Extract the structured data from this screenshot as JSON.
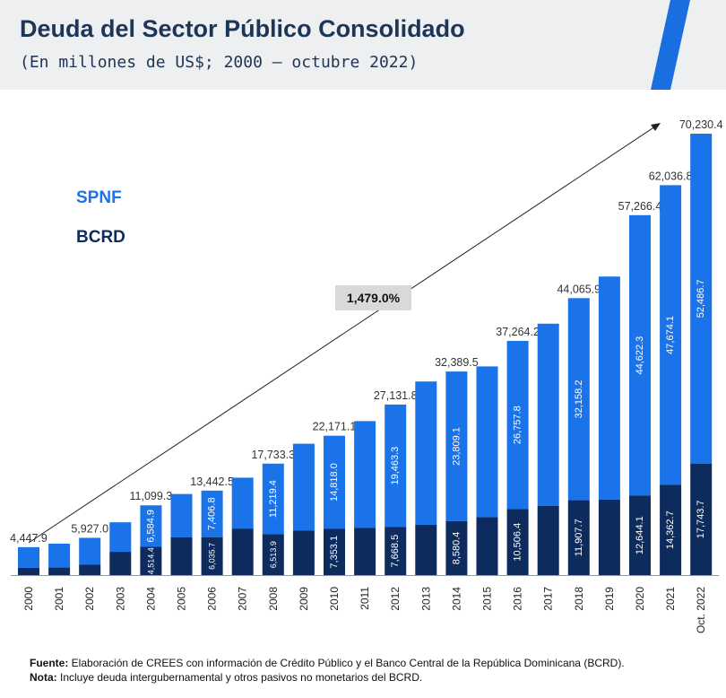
{
  "header": {
    "title": "Deuda del Sector Público Consolidado",
    "subtitle": "(En millones de US$; 2000 – octubre 2022)"
  },
  "colors": {
    "spnf": "#1a73e8",
    "bcrd": "#0d2b5c",
    "title": "#1d3557",
    "stripe": "#1a6fe0"
  },
  "chart_data": {
    "type": "bar",
    "stacked": true,
    "categories": [
      "2000",
      "2001",
      "2002",
      "2003",
      "2004",
      "2005",
      "2006",
      "2007",
      "2008",
      "2009",
      "2010",
      "2011",
      "2012",
      "2013",
      "2014",
      "2015",
      "2016",
      "2017",
      "2018",
      "2019",
      "2020",
      "2021",
      "Oct. 2022"
    ],
    "series": [
      {
        "name": "BCRD",
        "values": [
          1150,
          1200,
          1650,
          3700,
          4514.4,
          6000,
          6035.7,
          7400,
          6513.9,
          7100,
          7353.1,
          7500,
          7668.5,
          8000,
          8580.4,
          9200,
          10506.4,
          11000,
          11907.7,
          12000,
          12644.1,
          14362.7,
          17743.7
        ]
      },
      {
        "name": "SPNF",
        "values": [
          3297.9,
          3800,
          4277.0,
          4700,
          6584.9,
          6900,
          7406.8,
          8100,
          11219.4,
          13800,
          14818.0,
          17000,
          19463.3,
          22800,
          23809.1,
          24000,
          26757.8,
          29000,
          32158.2,
          35500,
          44622.3,
          47674.1,
          52486.7
        ]
      }
    ],
    "totals": [
      4447.9,
      5000,
      5927.0,
      8400,
      11099.3,
      12900,
      13442.5,
      15500,
      17733.3,
      20900,
      22171.1,
      24500,
      27131.8,
      30800,
      32389.5,
      33200,
      37264.2,
      40000,
      44065.9,
      47500,
      57266.4,
      62036.8,
      70230.4
    ],
    "total_labels": [
      "4,447.9",
      "",
      "5,927.0",
      "",
      "11,099.3",
      "",
      "13,442.5",
      "",
      "17,733.3",
      "",
      "22,171.1",
      "",
      "27,131.8",
      "",
      "32,389.5",
      "",
      "37,264.2",
      "",
      "44,065.9",
      "",
      "57,266.4",
      "62,036.8",
      "70,230.4"
    ],
    "bcrd_labels": [
      "",
      "",
      "",
      "",
      "4,514.4",
      "",
      "6,035.7",
      "",
      "6,513.9",
      "",
      "7,353.1",
      "",
      "7,668.5",
      "",
      "8,580.4",
      "",
      "10,506.4",
      "",
      "11,907.7",
      "",
      "12,644.1",
      "14,362.7",
      "17,743.7"
    ],
    "spnf_labels": [
      "",
      "",
      "",
      "",
      "6,584.9",
      "",
      "7,406.8",
      "",
      "11,219.4",
      "",
      "14,818.0",
      "",
      "19,463.3",
      "",
      "23,809.1",
      "",
      "26,757.8",
      "",
      "32,158.2",
      "",
      "44,622.3",
      "47,674.1",
      "52,486.7"
    ],
    "growth_label": "1,479.0%",
    "legend": [
      "SPNF",
      "BCRD"
    ],
    "legend_position": "top-left",
    "ylim": [
      0,
      70230.4
    ],
    "xlabel": "",
    "ylabel": ""
  },
  "footer": {
    "source_label": "Fuente:",
    "source_text": " Elaboración de CREES con información de Crédito Público y el Banco Central de la República Dominicana (BCRD).",
    "note_label": "Nota:",
    "note_text": " Incluye deuda intergubernamental y otros pasivos no monetarios del BCRD."
  }
}
